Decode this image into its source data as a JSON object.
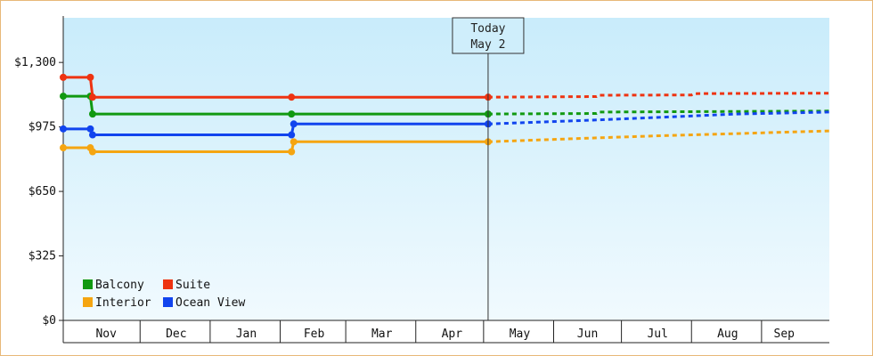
{
  "chart_data": {
    "type": "line",
    "x_domain": [
      "2023-10-27",
      "2024-09-30"
    ],
    "ylim": [
      0,
      1525
    ],
    "y_ticks": [
      {
        "value": 0,
        "label": "$0"
      },
      {
        "value": 325,
        "label": "$325"
      },
      {
        "value": 650,
        "label": "$650"
      },
      {
        "value": 975,
        "label": "$975"
      },
      {
        "value": 1300,
        "label": "$1,300"
      }
    ],
    "month_labels": [
      {
        "label": "Nov",
        "mid": "2023-11-15"
      },
      {
        "label": "Dec",
        "mid": "2023-12-16"
      },
      {
        "label": "Jan",
        "mid": "2024-01-16"
      },
      {
        "label": "Feb",
        "mid": "2024-02-15"
      },
      {
        "label": "Mar",
        "mid": "2024-03-16"
      },
      {
        "label": "Apr",
        "mid": "2024-04-16"
      },
      {
        "label": "May",
        "mid": "2024-05-16"
      },
      {
        "label": "Jun",
        "mid": "2024-06-15"
      },
      {
        "label": "Jul",
        "mid": "2024-07-16"
      },
      {
        "label": "Aug",
        "mid": "2024-08-16"
      },
      {
        "label": "Sep",
        "mid": "2024-09-10"
      }
    ],
    "month_separators": [
      "2023-11-30",
      "2023-12-31",
      "2024-01-31",
      "2024-02-29",
      "2024-03-31",
      "2024-04-30",
      "2024-05-31",
      "2024-06-30",
      "2024-07-31",
      "2024-08-31"
    ],
    "today": {
      "date": "2024-05-02",
      "label_line1": "Today",
      "label_line2": "May 2"
    },
    "grid": false,
    "legend_placement": "bottom-left",
    "series": [
      {
        "name": "Balcony",
        "color": "#119911",
        "history": [
          {
            "x": "2023-10-27",
            "y": 1130
          },
          {
            "x": "2023-11-08",
            "y": 1130
          },
          {
            "x": "2023-11-09",
            "y": 1040
          },
          {
            "x": "2024-02-05",
            "y": 1040
          },
          {
            "x": "2024-05-02",
            "y": 1040
          }
        ],
        "forecast": [
          {
            "x": "2024-05-02",
            "y": 1040
          },
          {
            "x": "2024-06-19",
            "y": 1043
          },
          {
            "x": "2024-06-20",
            "y": 1050
          },
          {
            "x": "2024-09-30",
            "y": 1055
          }
        ]
      },
      {
        "name": "Suite",
        "color": "#ee3311",
        "history": [
          {
            "x": "2023-10-27",
            "y": 1225
          },
          {
            "x": "2023-11-08",
            "y": 1225
          },
          {
            "x": "2023-11-09",
            "y": 1125
          },
          {
            "x": "2024-02-05",
            "y": 1125
          },
          {
            "x": "2024-05-02",
            "y": 1125
          }
        ],
        "forecast": [
          {
            "x": "2024-05-02",
            "y": 1125
          },
          {
            "x": "2024-06-19",
            "y": 1128
          },
          {
            "x": "2024-06-20",
            "y": 1135
          },
          {
            "x": "2024-07-31",
            "y": 1136
          },
          {
            "x": "2024-08-01",
            "y": 1143
          },
          {
            "x": "2024-09-30",
            "y": 1145
          }
        ]
      },
      {
        "name": "Interior",
        "color": "#f5a511",
        "history": [
          {
            "x": "2023-10-27",
            "y": 870
          },
          {
            "x": "2023-11-08",
            "y": 870
          },
          {
            "x": "2023-11-09",
            "y": 850
          },
          {
            "x": "2024-02-05",
            "y": 850
          },
          {
            "x": "2024-02-06",
            "y": 900
          },
          {
            "x": "2024-05-02",
            "y": 900
          }
        ],
        "forecast": [
          {
            "x": "2024-05-02",
            "y": 900
          },
          {
            "x": "2024-06-19",
            "y": 920
          },
          {
            "x": "2024-07-15",
            "y": 930
          },
          {
            "x": "2024-09-30",
            "y": 955
          }
        ]
      },
      {
        "name": "Ocean View",
        "color": "#1144ee",
        "history": [
          {
            "x": "2023-10-27",
            "y": 965
          },
          {
            "x": "2023-11-08",
            "y": 965
          },
          {
            "x": "2023-11-09",
            "y": 935
          },
          {
            "x": "2024-02-05",
            "y": 935
          },
          {
            "x": "2024-02-06",
            "y": 990
          },
          {
            "x": "2024-05-02",
            "y": 990
          }
        ],
        "forecast": [
          {
            "x": "2024-05-02",
            "y": 990
          },
          {
            "x": "2024-06-19",
            "y": 1010
          },
          {
            "x": "2024-07-20",
            "y": 1025
          },
          {
            "x": "2024-08-20",
            "y": 1040
          },
          {
            "x": "2024-09-30",
            "y": 1050
          }
        ]
      }
    ],
    "markers": {
      "Balcony": [
        "2023-10-27",
        "2023-11-08",
        "2023-11-09",
        "2024-02-05",
        "2024-05-02"
      ],
      "Suite": [
        "2023-10-27",
        "2023-11-08",
        "2023-11-09",
        "2024-02-05",
        "2024-05-02"
      ],
      "Interior": [
        "2023-10-27",
        "2023-11-08",
        "2023-11-09",
        "2024-02-05",
        "2024-02-06",
        "2024-05-02"
      ],
      "Ocean View": [
        "2023-10-27",
        "2023-11-08",
        "2023-11-09",
        "2024-02-05",
        "2024-02-06",
        "2024-05-02"
      ]
    },
    "legend": [
      {
        "name": "Balcony",
        "color": "#119911"
      },
      {
        "name": "Suite",
        "color": "#ee3311"
      },
      {
        "name": "Interior",
        "color": "#f5a511"
      },
      {
        "name": "Ocean View",
        "color": "#1144ee"
      }
    ]
  }
}
